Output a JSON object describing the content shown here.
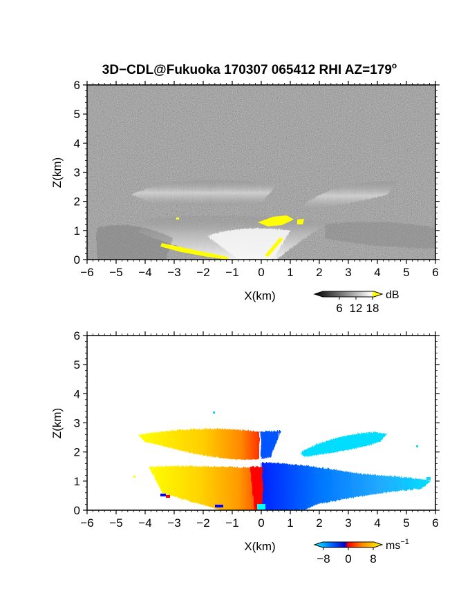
{
  "title": "3D−CDL@Fukuoka 170307 065412 RHI AZ=179",
  "title_degree_mark": "o",
  "chart_data": [
    {
      "type": "heatmap",
      "panel": "reflectivity",
      "xlabel": "X(km)",
      "ylabel": "Z(km)",
      "xlim": [
        -6,
        6
      ],
      "ylim": [
        0,
        6
      ],
      "xticks": [
        "−6",
        "−5",
        "−4",
        "−3",
        "−2",
        "−1",
        "0",
        "1",
        "2",
        "3",
        "4",
        "5",
        "6"
      ],
      "yticks": [
        "0",
        "1",
        "2",
        "3",
        "4",
        "5",
        "6"
      ],
      "colorscale": "grayscale, yellow above 18 dB",
      "colorbar": {
        "unit": "dB",
        "ticks": [
          "6",
          "12",
          "18"
        ],
        "range": [
          0,
          21
        ]
      },
      "colors": {
        "background_noise": "#333333",
        "strong": "#f0f0f0",
        "saturated": "#ffff00"
      },
      "plumes": [
        {
          "x": [
            -4.5,
            -0.6
          ],
          "z": [
            1.4,
            2.8
          ]
        },
        {
          "x": [
            1.3,
            4.2
          ],
          "z": [
            1.8,
            2.8
          ]
        },
        {
          "x": [
            -4.0,
            2.5
          ],
          "z": [
            0.0,
            1.5
          ]
        }
      ],
      "saturated_regions": [
        {
          "x": [
            -3.4,
            -1.5
          ],
          "z": [
            0.0,
            0.5
          ]
        },
        {
          "x": [
            0.0,
            1.5
          ],
          "z": [
            1.2,
            1.5
          ]
        }
      ]
    },
    {
      "type": "heatmap",
      "panel": "radial velocity",
      "xlabel": "X(km)",
      "ylabel": "Z(km)",
      "xlim": [
        -6,
        6
      ],
      "ylim": [
        0,
        6
      ],
      "xticks": [
        "−6",
        "−5",
        "−4",
        "−3",
        "−2",
        "−1",
        "0",
        "1",
        "2",
        "3",
        "4",
        "5",
        "6"
      ],
      "yticks": [
        "0",
        "1",
        "2",
        "3",
        "4",
        "5",
        "6"
      ],
      "colorscale": "cyan-blue-red-yellow diverging",
      "colorbar": {
        "unit": "ms",
        "unit_exponent": "−1",
        "ticks": [
          "−8",
          "0",
          "8"
        ],
        "range": [
          -10,
          10
        ]
      },
      "colors": {
        "neg_max": "#00eeff",
        "neg": "#0033ff",
        "zero": "#ff0000",
        "pos": "#ff9900",
        "pos_max": "#ffff00"
      },
      "regions": [
        {
          "x": [
            -4.4,
            -0.1
          ],
          "z": [
            1.8,
            2.8
          ],
          "velocity": "positive"
        },
        {
          "x": [
            0.0,
            0.7
          ],
          "z": [
            1.8,
            2.7
          ],
          "velocity": "negative"
        },
        {
          "x": [
            1.3,
            5.0
          ],
          "z": [
            1.9,
            2.7
          ],
          "velocity": "strongly negative"
        },
        {
          "x": [
            -3.8,
            -0.1
          ],
          "z": [
            0.0,
            1.5
          ],
          "velocity": "positive"
        },
        {
          "x": [
            0.0,
            5.5
          ],
          "z": [
            0.0,
            1.3
          ],
          "velocity": "negative"
        }
      ]
    }
  ]
}
